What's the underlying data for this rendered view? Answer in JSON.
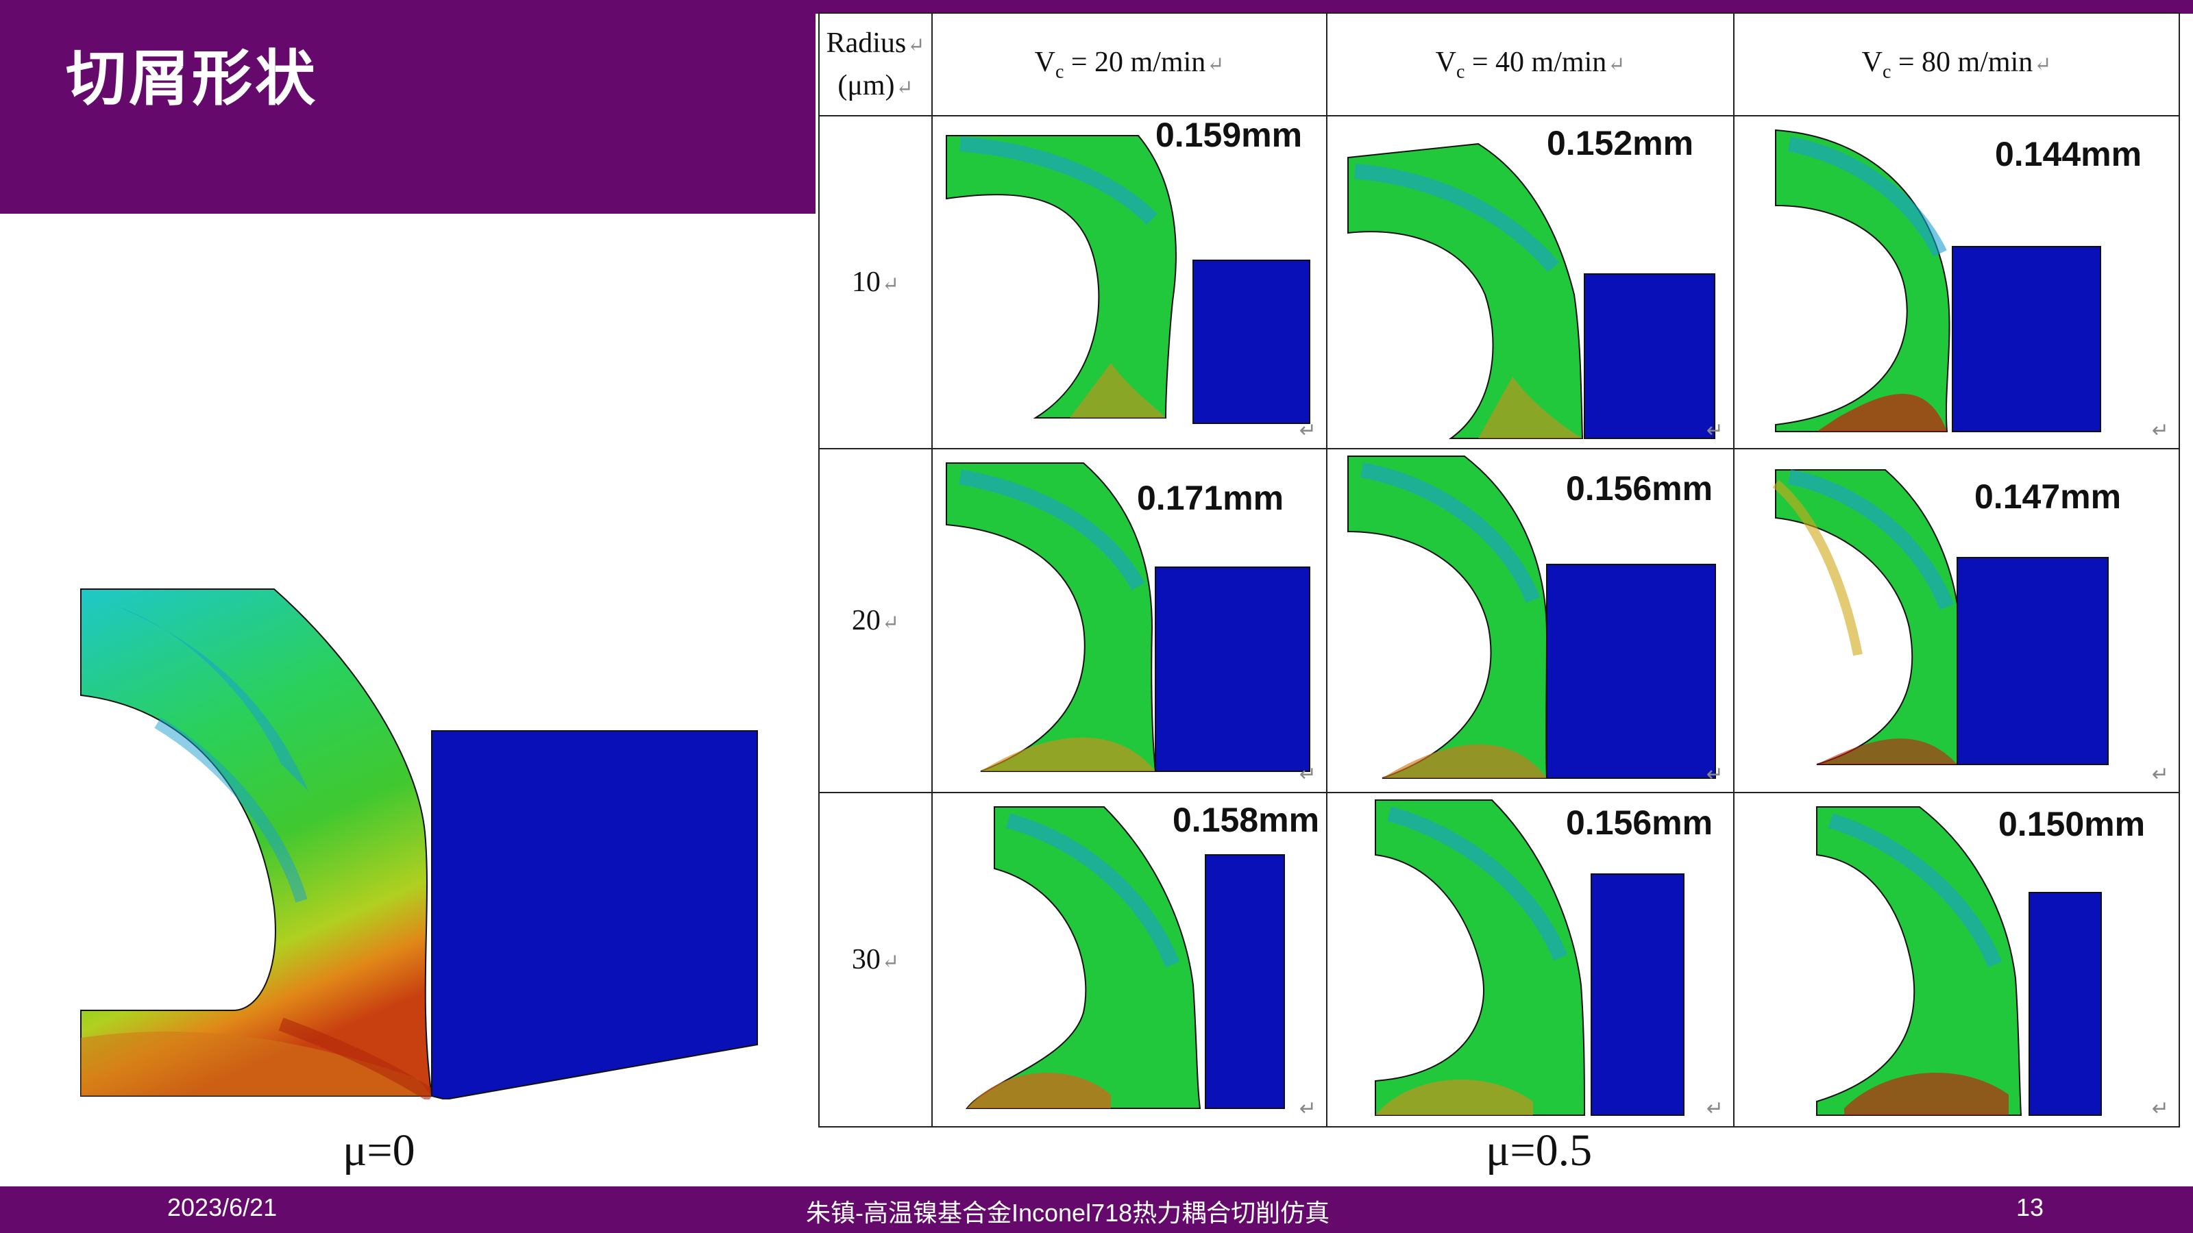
{
  "slide": {
    "title": "切屑形状",
    "footer": {
      "date": "2023/6/21",
      "center": "朱镇-高温镍基合金Inconel718热力耦合切削仿真",
      "page": "13"
    }
  },
  "left": {
    "label": "μ=0"
  },
  "right": {
    "label": "μ=0.5"
  },
  "table": {
    "header": {
      "radius_line1": "Radius",
      "radius_line2": "(μm)",
      "columns": [
        {
          "v": "V",
          "sub": "c",
          "rest": " = 20 m/min"
        },
        {
          "v": "V",
          "sub": "c",
          "rest": " = 40 m/min"
        },
        {
          "v": "V",
          "sub": "c",
          "rest": " = 80 m/min"
        }
      ]
    },
    "rows": [
      {
        "radius": "10",
        "cells": [
          "0.159mm",
          "0.152mm",
          "0.144mm"
        ]
      },
      {
        "radius": "20",
        "cells": [
          "0.171mm",
          "0.156mm",
          "0.147mm"
        ]
      },
      {
        "radius": "30",
        "cells": [
          "0.158mm",
          "0.156mm",
          "0.150mm"
        ]
      }
    ]
  },
  "colors": {
    "brand_purple": "#650a6c",
    "tool_blue": "#0a10b8",
    "contour_green": "#22c83c",
    "contour_cyan": "#1ec8c8",
    "contour_red": "#c81e0a"
  }
}
